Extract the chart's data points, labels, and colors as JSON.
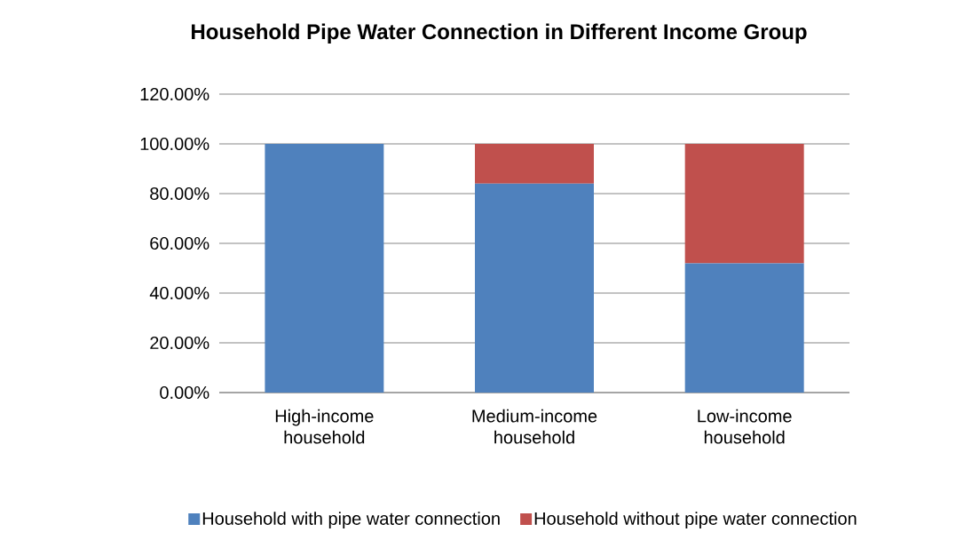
{
  "chart_data": {
    "type": "bar",
    "title": "Household Pipe Water Connection in Different Income Group",
    "categories": [
      "High-income household",
      "Medium-income household",
      "Low-income household"
    ],
    "stacked": true,
    "series": [
      {
        "name": "Household with pipe water connection",
        "color": "#4f81bd",
        "values": [
          100,
          84,
          52
        ]
      },
      {
        "name": "Household without pipe water connection",
        "color": "#c0504d",
        "values": [
          0,
          16,
          48
        ]
      }
    ],
    "ylim": [
      0,
      120
    ],
    "yticks": [
      {
        "value": 0,
        "label": "0.00%"
      },
      {
        "value": 20,
        "label": "20.00%"
      },
      {
        "value": 40,
        "label": "40.00%"
      },
      {
        "value": 60,
        "label": "60.00%"
      },
      {
        "value": 80,
        "label": "80.00%"
      },
      {
        "value": 100,
        "label": "100.00%"
      },
      {
        "value": 120,
        "label": "120.00%"
      }
    ],
    "grid": "y",
    "legend": "bottom"
  }
}
